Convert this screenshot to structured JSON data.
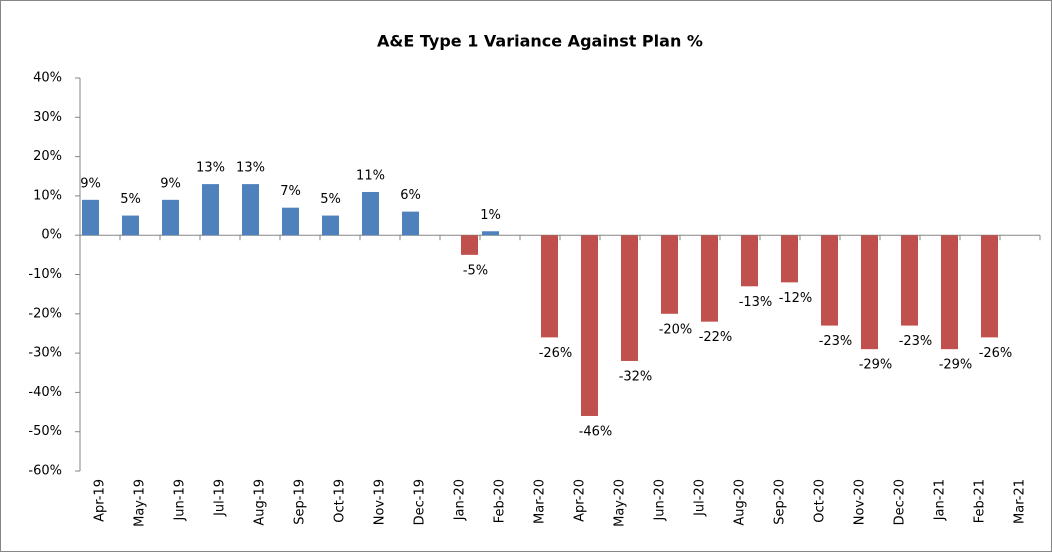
{
  "chart_data": {
    "type": "bar",
    "title": "A&E Type 1 Variance Against Plan %",
    "categories": [
      "Apr-19",
      "May-19",
      "Jun-19",
      "Jul-19",
      "Aug-19",
      "Sep-19",
      "Oct-19",
      "Nov-19",
      "Dec-19",
      "Jan-20",
      "Feb-20",
      "Mar-20",
      "Apr-20",
      "May-20",
      "Jun-20",
      "Jul-20",
      "Aug-20",
      "Sep-20",
      "Oct-20",
      "Nov-20",
      "Dec-20",
      "Jan-21",
      "Feb-21",
      "Mar-21"
    ],
    "series": [
      {
        "color": "#4f81bd",
        "values": [
          9,
          5,
          9,
          13,
          13,
          7,
          5,
          11,
          6,
          null,
          1,
          null,
          null,
          null,
          null,
          null,
          null,
          null,
          null,
          null,
          null,
          null,
          null,
          null
        ],
        "value_labels": [
          "9%",
          "5%",
          "9%",
          "13%",
          "13%",
          "7%",
          "5%",
          "11%",
          "6%",
          null,
          "1%",
          null,
          null,
          null,
          null,
          null,
          null,
          null,
          null,
          null,
          null,
          null,
          null,
          null
        ]
      },
      {
        "color": "#c0504d",
        "values": [
          null,
          null,
          null,
          null,
          null,
          null,
          null,
          null,
          null,
          -5,
          null,
          -26,
          -46,
          -32,
          -20,
          -22,
          -13,
          -12,
          -23,
          -29,
          -23,
          -29,
          -26,
          null
        ],
        "value_labels": [
          null,
          null,
          null,
          null,
          null,
          null,
          null,
          null,
          null,
          "-5%",
          null,
          "-26%",
          "-46%",
          "-32%",
          "-20%",
          "-22%",
          "-13%",
          "-12%",
          "-23%",
          "-29%",
          "-23%",
          "-29%",
          "-26%",
          null
        ]
      }
    ],
    "ylim": [
      -60,
      40
    ],
    "yticks": [
      {
        "value": -60,
        "label": "-60%"
      },
      {
        "value": -50,
        "label": "-50%"
      },
      {
        "value": -40,
        "label": "-40%"
      },
      {
        "value": -30,
        "label": "-30%"
      },
      {
        "value": -20,
        "label": "-20%"
      },
      {
        "value": -10,
        "label": "-10%"
      },
      {
        "value": 0,
        "label": "0%"
      },
      {
        "value": 10,
        "label": "10%"
      },
      {
        "value": 20,
        "label": "20%"
      },
      {
        "value": 30,
        "label": "30%"
      },
      {
        "value": 40,
        "label": "40%"
      }
    ]
  }
}
